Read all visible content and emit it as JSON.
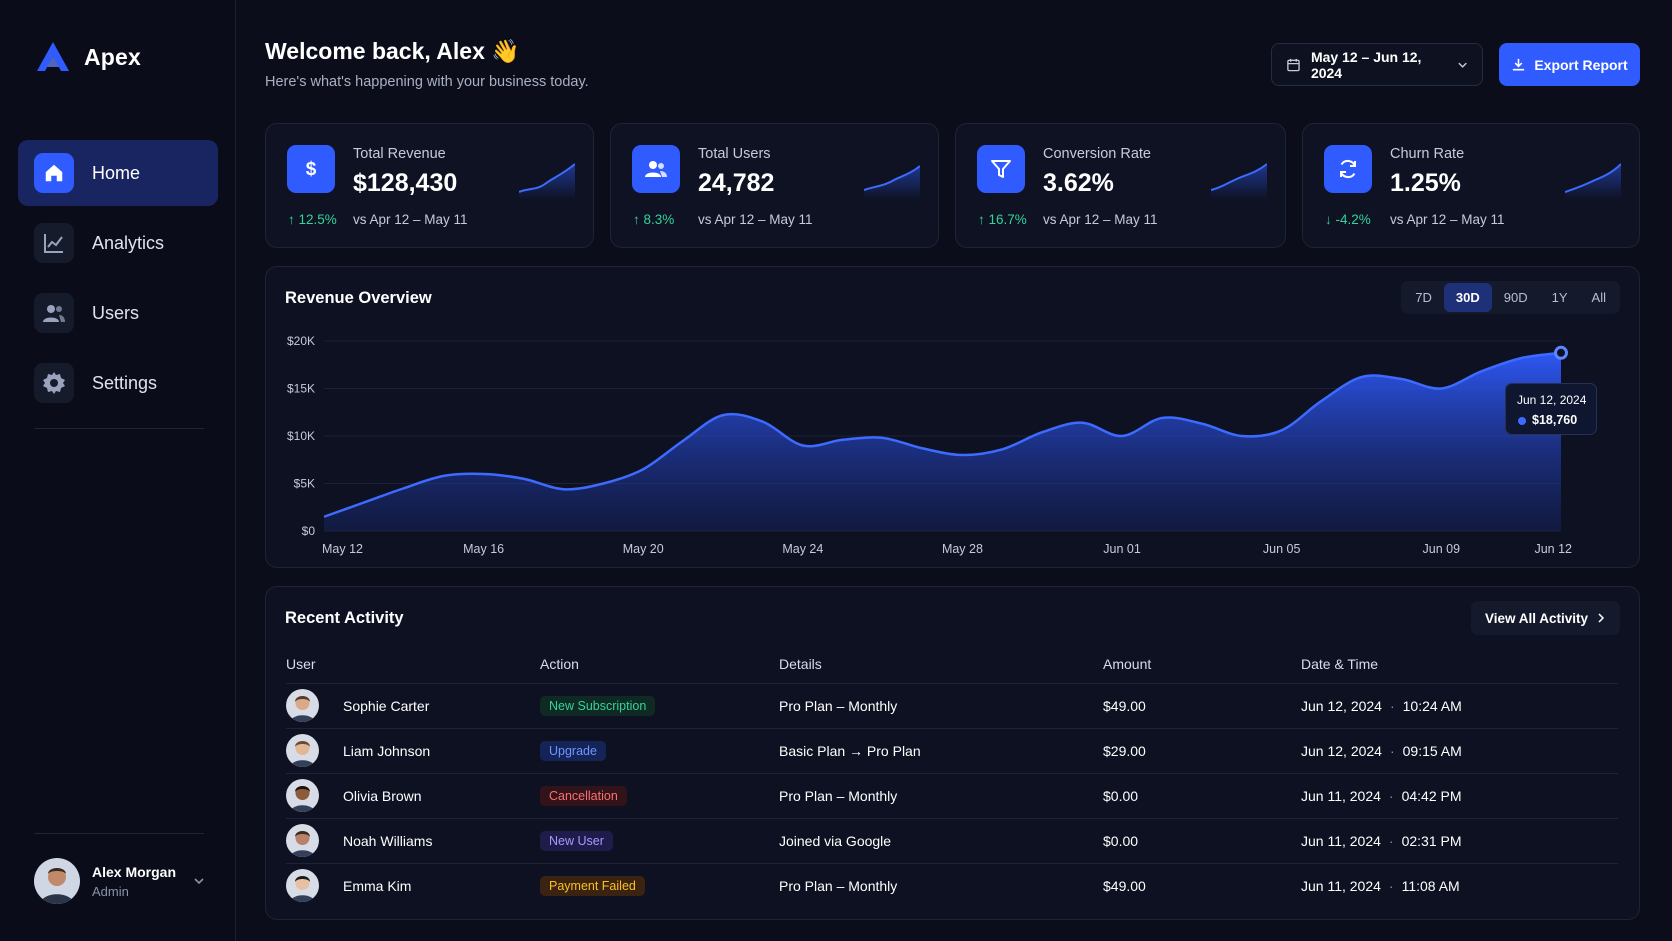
{
  "brand": {
    "name": "Apex"
  },
  "sidebar": {
    "items": [
      {
        "label": "Home",
        "icon": "home-icon",
        "active": true
      },
      {
        "label": "Analytics",
        "icon": "analytics-icon",
        "active": false
      },
      {
        "label": "Users",
        "icon": "users-icon",
        "active": false
      },
      {
        "label": "Settings",
        "icon": "gear-icon",
        "active": false
      }
    ],
    "user": {
      "name": "Alex Morgan",
      "role": "Admin"
    }
  },
  "header": {
    "title": "Welcome back, Alex 👋",
    "subtitle": "Here's what's happening with your business today.",
    "date_range": "May 12 – Jun 12, 2024",
    "export_label": "Export Report"
  },
  "kpis": [
    {
      "label": "Total Revenue",
      "value": "$128,430",
      "delta": "↑ 12.5%",
      "trend": "up",
      "compare": "vs Apr 12 – May 11",
      "icon": "dollar-icon"
    },
    {
      "label": "Total Users",
      "value": "24,782",
      "delta": "↑ 8.3%",
      "trend": "up",
      "compare": "vs Apr 12 – May 11",
      "icon": "users-icon"
    },
    {
      "label": "Conversion Rate",
      "value": "3.62%",
      "delta": "↑ 16.7%",
      "trend": "up",
      "compare": "vs Apr 12 – May 11",
      "icon": "funnel-icon"
    },
    {
      "label": "Churn Rate",
      "value": "1.25%",
      "delta": "↓ -4.2%",
      "trend": "down",
      "compare": "vs Apr 12 – May 11",
      "icon": "refresh-icon"
    }
  ],
  "revenue": {
    "title": "Revenue Overview",
    "ranges": [
      "7D",
      "30D",
      "90D",
      "1Y",
      "All"
    ],
    "active_range": "30D",
    "tooltip": {
      "date": "Jun 12, 2024",
      "value": "$18,760"
    }
  },
  "chart_data": {
    "type": "area",
    "title": "Revenue Overview",
    "x": [
      "May 12",
      "May 13",
      "May 14",
      "May 15",
      "May 16",
      "May 17",
      "May 18",
      "May 19",
      "May 20",
      "May 21",
      "May 22",
      "May 23",
      "May 24",
      "May 25",
      "May 26",
      "May 27",
      "May 28",
      "May 29",
      "May 30",
      "May 31",
      "Jun 01",
      "Jun 02",
      "Jun 03",
      "Jun 04",
      "Jun 05",
      "Jun 06",
      "Jun 07",
      "Jun 08",
      "Jun 09",
      "Jun 10",
      "Jun 11",
      "Jun 12"
    ],
    "x_tick_labels": [
      "May 12",
      "May 16",
      "May 20",
      "May 24",
      "May 28",
      "Jun 01",
      "Jun 05",
      "Jun 09",
      "Jun 12"
    ],
    "y_tick_labels": [
      "$0",
      "$5K",
      "$10K",
      "$15K",
      "$20K"
    ],
    "series": [
      {
        "values": [
          1500,
          3000,
          4500,
          5800,
          6000,
          5500,
          4400,
          5000,
          6500,
          9500,
          12200,
          11500,
          9000,
          9600,
          9800,
          8700,
          8000,
          8600,
          10400,
          11400,
          10000,
          11900,
          11300,
          10000,
          10600,
          13700,
          16200,
          16000,
          15000,
          16800,
          18200,
          18760
        ]
      }
    ],
    "ylim": [
      0,
      20000
    ],
    "grid": true,
    "color": "#2f5bff"
  },
  "activity": {
    "title": "Recent Activity",
    "view_all": "View All Activity",
    "columns": [
      "User",
      "Action",
      "Details",
      "Amount",
      "Date & Time"
    ],
    "rows": [
      {
        "user": "Sophie Carter",
        "action": "New Subscription",
        "tone": "green",
        "details": "Pro Plan – Monthly",
        "amount": "$49.00",
        "date": "Jun 12, 2024",
        "time": "10:24 AM"
      },
      {
        "user": "Liam Johnson",
        "action": "Upgrade",
        "tone": "blue",
        "details": "Basic Plan → Pro Plan",
        "amount": "$29.00",
        "date": "Jun 12, 2024",
        "time": "09:15 AM"
      },
      {
        "user": "Olivia Brown",
        "action": "Cancellation",
        "tone": "red",
        "details": "Pro Plan – Monthly",
        "amount": "$0.00",
        "date": "Jun 11, 2024",
        "time": "04:42 PM"
      },
      {
        "user": "Noah Williams",
        "action": "New User",
        "tone": "purple",
        "details": "Joined via Google",
        "amount": "$0.00",
        "date": "Jun 11, 2024",
        "time": "02:31 PM"
      },
      {
        "user": "Emma Kim",
        "action": "Payment Failed",
        "tone": "orange",
        "details": "Pro Plan – Monthly",
        "amount": "$49.00",
        "date": "Jun 11, 2024",
        "time": "11:08 AM"
      }
    ]
  },
  "colors": {
    "accent": "#2f5bff",
    "background": "#0b0e1a",
    "positive": "#34d399"
  }
}
